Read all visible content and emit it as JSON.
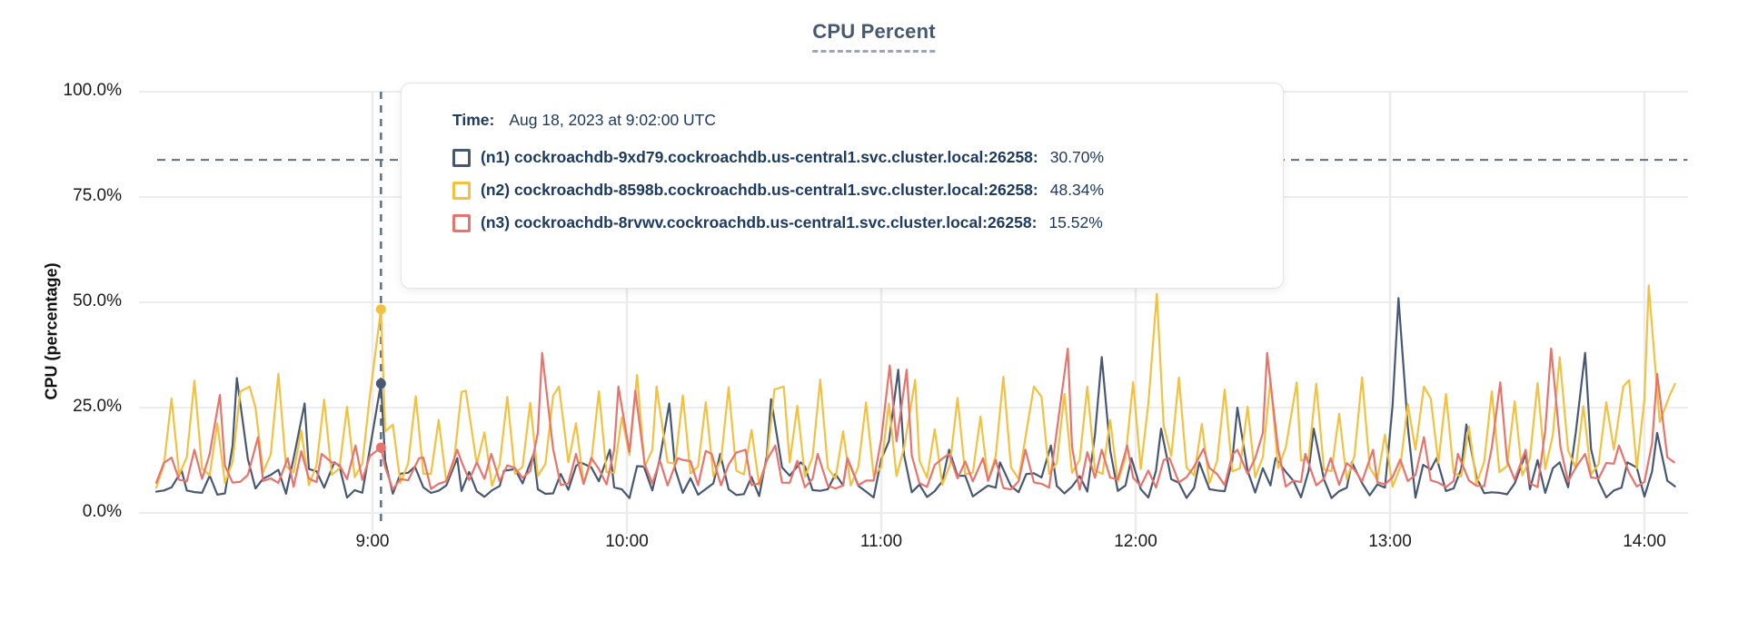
{
  "header": {
    "title": "CPU Percent"
  },
  "colors": {
    "title": "#475872",
    "grid": "#ececec",
    "dashed_guides": "#5b7183",
    "tooltip_text": "#1d3a60",
    "series_n1": "#475872",
    "series_n2": "#f2c140",
    "series_n3": "#e8736c"
  },
  "y_axis": {
    "label": "CPU (percentage)",
    "ticks": [
      {
        "label": "0.0%",
        "value": 0
      },
      {
        "label": "25.0%",
        "value": 25
      },
      {
        "label": "50.0%",
        "value": 50
      },
      {
        "label": "75.0%",
        "value": 75
      },
      {
        "label": "100.0%",
        "value": 100
      }
    ]
  },
  "x_axis": {
    "ticks": [
      {
        "label": "9:00",
        "hour": 9
      },
      {
        "label": "10:00",
        "hour": 10
      },
      {
        "label": "11:00",
        "hour": 11
      },
      {
        "label": "12:00",
        "hour": 12
      },
      {
        "label": "13:00",
        "hour": 13
      },
      {
        "label": "14:00",
        "hour": 14
      }
    ]
  },
  "tooltip": {
    "time_label": "Time:",
    "time_value": "Aug 18, 2023 at 9:02:00 UTC",
    "rows": [
      {
        "id": "n1",
        "color": "#475872",
        "label": "(n1) cockroachdb-9xd79.cockroachdb.us-central1.svc.cluster.local:26258:",
        "value": "30.70%"
      },
      {
        "id": "n2",
        "color": "#f2c140",
        "label": "(n2) cockroachdb-8598b.cockroachdb.us-central1.svc.cluster.local:26258:",
        "value": "48.34%"
      },
      {
        "id": "n3",
        "color": "#e8736c",
        "label": "(n3) cockroachdb-8rvwv.cockroachdb.us-central1.svc.cluster.local:26258:",
        "value": "15.52%"
      }
    ]
  },
  "chart_data": {
    "type": "line",
    "title": "CPU Percent",
    "ylabel": "CPU (percentage)",
    "ylim": [
      0,
      100
    ],
    "grid": true,
    "x_range": [
      "8:09",
      "14:08"
    ],
    "x_tick_labels": [
      "9:00",
      "10:00",
      "11:00",
      "12:00",
      "13:00",
      "14:00"
    ],
    "y_tick_labels": [
      "0.0%",
      "25.0%",
      "50.0%",
      "75.0%",
      "100.0%"
    ],
    "legend_position": "tooltip-overlay",
    "threshold_dashed_line_pct": 83.8,
    "hover": {
      "time": "Aug 18, 2023 at 9:02:00 UTC",
      "minute_of_day": 542,
      "values": {
        "n1": 30.7,
        "n2": 48.34,
        "n3": 15.52
      }
    },
    "time_window_minutes": {
      "start": 489,
      "end": 848
    },
    "series": [
      {
        "id": "n1",
        "name": "(n1) cockroachdb-9xd79.cockroachdb.us-central1.svc.cluster.local:26258",
        "color": "#475872",
        "seed": 11,
        "base": [
          3.5,
          6.5
        ],
        "bump_chance": 0.28,
        "bump": [
          2.5,
          7
        ],
        "peaks": [
          [
            495,
            10
          ],
          [
            508,
            32
          ],
          [
            516,
            9
          ],
          [
            524,
            26
          ],
          [
            531,
            12
          ],
          [
            542,
            30.7
          ],
          [
            550,
            11
          ],
          [
            560,
            13
          ],
          [
            571,
            10
          ],
          [
            578,
            14
          ],
          [
            589,
            12
          ],
          [
            596,
            15
          ],
          [
            604,
            11
          ],
          [
            610,
            26
          ],
          [
            622,
            14
          ],
          [
            634,
            27
          ],
          [
            641,
            12
          ],
          [
            652,
            13
          ],
          [
            664,
            34
          ],
          [
            676,
            15
          ],
          [
            688,
            12
          ],
          [
            700,
            16
          ],
          [
            712,
            37
          ],
          [
            719,
            13
          ],
          [
            726,
            20
          ],
          [
            735,
            12
          ],
          [
            744,
            25
          ],
          [
            753,
            13
          ],
          [
            762,
            20
          ],
          [
            771,
            12
          ],
          [
            782,
            51
          ],
          [
            791,
            13
          ],
          [
            798,
            21
          ],
          [
            812,
            14
          ],
          [
            820,
            12
          ],
          [
            826,
            38
          ],
          [
            836,
            12
          ],
          [
            843,
            19
          ]
        ]
      },
      {
        "id": "n2",
        "name": "(n2) cockroachdb-8598b.cockroachdb.us-central1.svc.cluster.local:26258",
        "color": "#f2c140",
        "seed": 22,
        "base": [
          3.5,
          7.5
        ],
        "bump_chance": 0.15,
        "bump": [
          2,
          5
        ],
        "periodic": {
          "start": 492,
          "period": 5.3,
          "heights": [
            26,
            30,
            22,
            29,
            24,
            31,
            21,
            27
          ],
          "jitter": 5
        },
        "peaks": [
          [
            511,
            30
          ],
          [
            542,
            48.34
          ],
          [
            562,
            29
          ],
          [
            584,
            30
          ],
          [
            607,
            30
          ],
          [
            637,
            30
          ],
          [
            668,
            31
          ],
          [
            696,
            30
          ],
          [
            725,
            52
          ],
          [
            758,
            31
          ],
          [
            788,
            30
          ],
          [
            820,
            37
          ],
          [
            835,
            30
          ],
          [
            841,
            54
          ],
          [
            846,
            28
          ]
        ]
      },
      {
        "id": "n3",
        "name": "(n3) cockroachdb-8rvwv.cockroachdb.us-central1.svc.cluster.local:26258",
        "color": "#e8736c",
        "seed": 33,
        "base": [
          5.5,
          8.5
        ],
        "bump_chance": 0.3,
        "bump": [
          2.5,
          7
        ],
        "peaks": [
          [
            498,
            15
          ],
          [
            504,
            28
          ],
          [
            513,
            18
          ],
          [
            520,
            13
          ],
          [
            528,
            14
          ],
          [
            536,
            16
          ],
          [
            542,
            15.52
          ],
          [
            551,
            13
          ],
          [
            560,
            15
          ],
          [
            568,
            14
          ],
          [
            580,
            38
          ],
          [
            588,
            14
          ],
          [
            598,
            30
          ],
          [
            602,
            29
          ],
          [
            612,
            13
          ],
          [
            620,
            14
          ],
          [
            628,
            15
          ],
          [
            635,
            16
          ],
          [
            645,
            14
          ],
          [
            652,
            13
          ],
          [
            662,
            35
          ],
          [
            666,
            34
          ],
          [
            676,
            14
          ],
          [
            684,
            13
          ],
          [
            694,
            15
          ],
          [
            704,
            39
          ],
          [
            712,
            15
          ],
          [
            718,
            16
          ],
          [
            728,
            13
          ],
          [
            736,
            14
          ],
          [
            744,
            15
          ],
          [
            751,
            38
          ],
          [
            760,
            14
          ],
          [
            766,
            13
          ],
          [
            776,
            15
          ],
          [
            788,
            18
          ],
          [
            796,
            14
          ],
          [
            806,
            31
          ],
          [
            812,
            15
          ],
          [
            818,
            39
          ],
          [
            826,
            14
          ],
          [
            834,
            16
          ],
          [
            843,
            33
          ],
          [
            847,
            12
          ]
        ]
      }
    ]
  }
}
